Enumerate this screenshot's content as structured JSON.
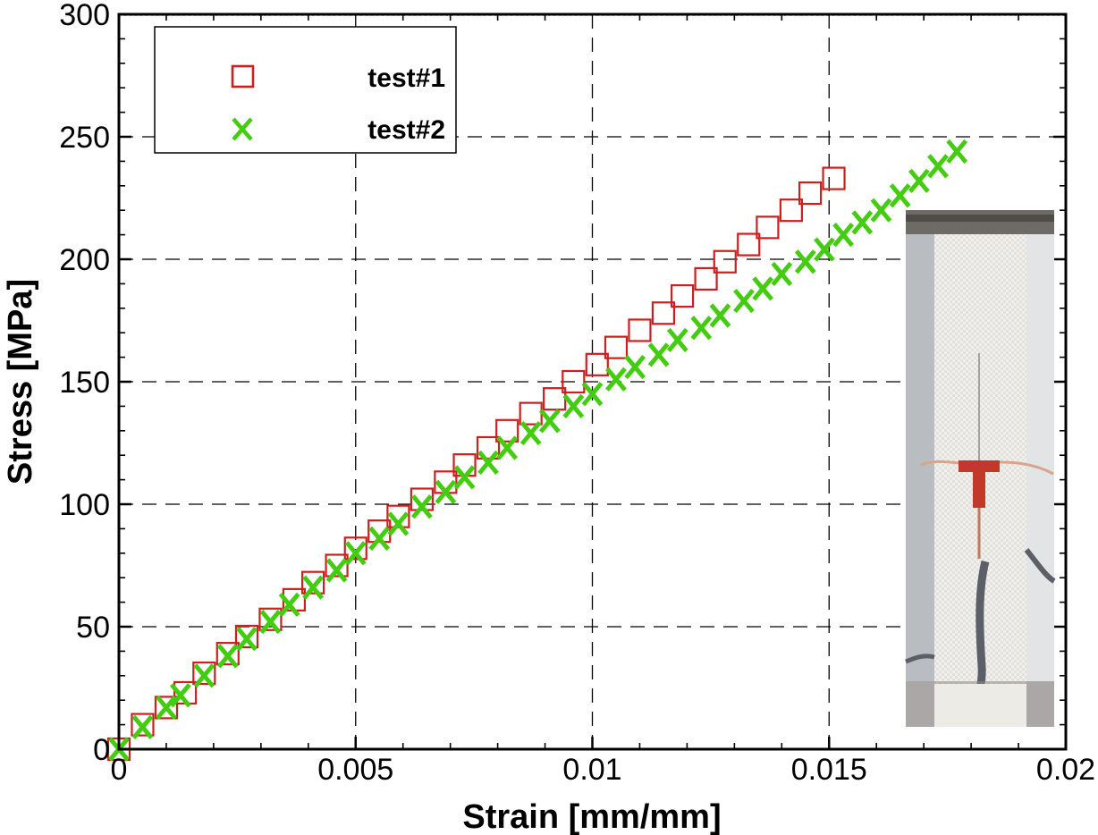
{
  "chart_data": {
    "type": "scatter",
    "xlabel": "Strain [mm/mm]",
    "ylabel": "Stress [MPa]",
    "xlim": [
      0,
      0.02
    ],
    "ylim": [
      0,
      300
    ],
    "xticks": [
      0,
      0.005,
      0.01,
      0.015,
      0.02
    ],
    "xtick_labels": [
      "0",
      "0.005",
      "0.01",
      "0.015",
      "0.02"
    ],
    "yticks": [
      0,
      50,
      100,
      150,
      200,
      250,
      300
    ],
    "ytick_labels": [
      "0",
      "50",
      "100",
      "150",
      "200",
      "250",
      "300"
    ],
    "grid": true,
    "legend_position": "top-left",
    "series": [
      {
        "name": "test#1",
        "marker": "square",
        "color": "#cc1f1f",
        "x": [
          0,
          0.0005,
          0.001,
          0.0014,
          0.0018,
          0.0023,
          0.0027,
          0.0032,
          0.0037,
          0.0041,
          0.0046,
          0.005,
          0.0055,
          0.0059,
          0.0064,
          0.0069,
          0.0073,
          0.0078,
          0.0082,
          0.0087,
          0.0092,
          0.0096,
          0.0101,
          0.0105,
          0.011,
          0.0115,
          0.0119,
          0.0124,
          0.0128,
          0.0133,
          0.0137,
          0.0142,
          0.0146,
          0.0151
        ],
        "y": [
          0,
          10,
          17,
          23,
          31,
          39,
          46,
          53,
          61,
          68,
          75,
          82,
          89,
          95,
          102,
          109,
          116,
          123,
          130,
          137,
          143,
          150,
          157,
          164,
          171,
          178,
          185,
          192,
          199,
          206,
          213,
          220,
          227,
          233
        ]
      },
      {
        "name": "test#2",
        "marker": "x",
        "color": "#44cc11",
        "x": [
          0,
          0.0005,
          0.001,
          0.0013,
          0.0018,
          0.0023,
          0.0027,
          0.0032,
          0.0036,
          0.0041,
          0.0046,
          0.005,
          0.0055,
          0.0059,
          0.0064,
          0.0069,
          0.0073,
          0.0078,
          0.0082,
          0.0087,
          0.0091,
          0.0096,
          0.01,
          0.0105,
          0.0109,
          0.0114,
          0.0118,
          0.0123,
          0.0127,
          0.0132,
          0.0136,
          0.014,
          0.0145,
          0.0149,
          0.0153,
          0.0157,
          0.0161,
          0.0165,
          0.0169,
          0.0173,
          0.0177
        ],
        "y": [
          0,
          9,
          17,
          22,
          30,
          38,
          45,
          52,
          59,
          66,
          73,
          80,
          86,
          92,
          99,
          105,
          111,
          117,
          123,
          129,
          134,
          140,
          145,
          151,
          156,
          161,
          167,
          172,
          177,
          183,
          188,
          194,
          199,
          204,
          210,
          215,
          220,
          226,
          232,
          238,
          244
        ]
      }
    ]
  }
}
